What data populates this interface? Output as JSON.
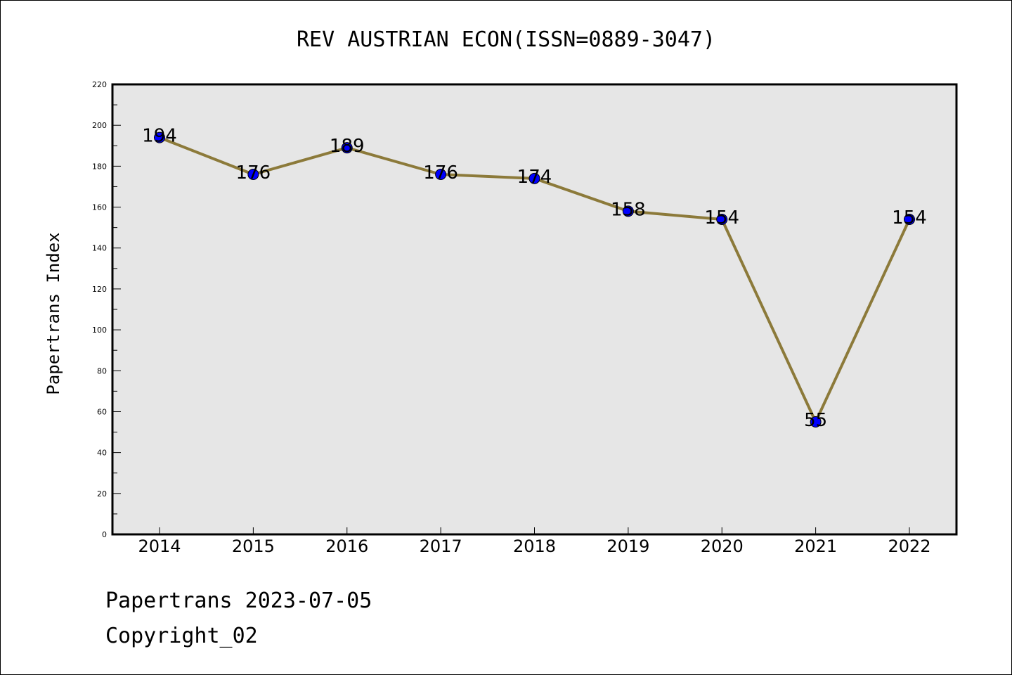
{
  "chart_data": {
    "type": "line",
    "title": "REV AUSTRIAN ECON(ISSN=0889-3047)",
    "xlabel": "",
    "ylabel": "Papertrans Index",
    "categories": [
      "2014",
      "2015",
      "2016",
      "2017",
      "2018",
      "2019",
      "2020",
      "2021",
      "2022"
    ],
    "series": [
      {
        "values": [
          194,
          176,
          189,
          176,
          174,
          158,
          154,
          55,
          154
        ]
      }
    ],
    "data_labels": [
      "194",
      "176",
      "189",
      "176",
      "174",
      "158",
      "154",
      "55",
      "154"
    ],
    "ylim": [
      0,
      220
    ],
    "yticks": [
      0,
      20,
      40,
      60,
      80,
      100,
      120,
      140,
      160,
      180,
      200,
      220
    ],
    "grid": false,
    "legend": "none",
    "colors": {
      "line": "#8c7a3a",
      "marker": "#0000ff",
      "plot_background": "#e6e6e6",
      "axis": "#000000"
    }
  },
  "footer": {
    "line1": "Papertrans 2023-07-05",
    "line2": "Copyright_02"
  }
}
